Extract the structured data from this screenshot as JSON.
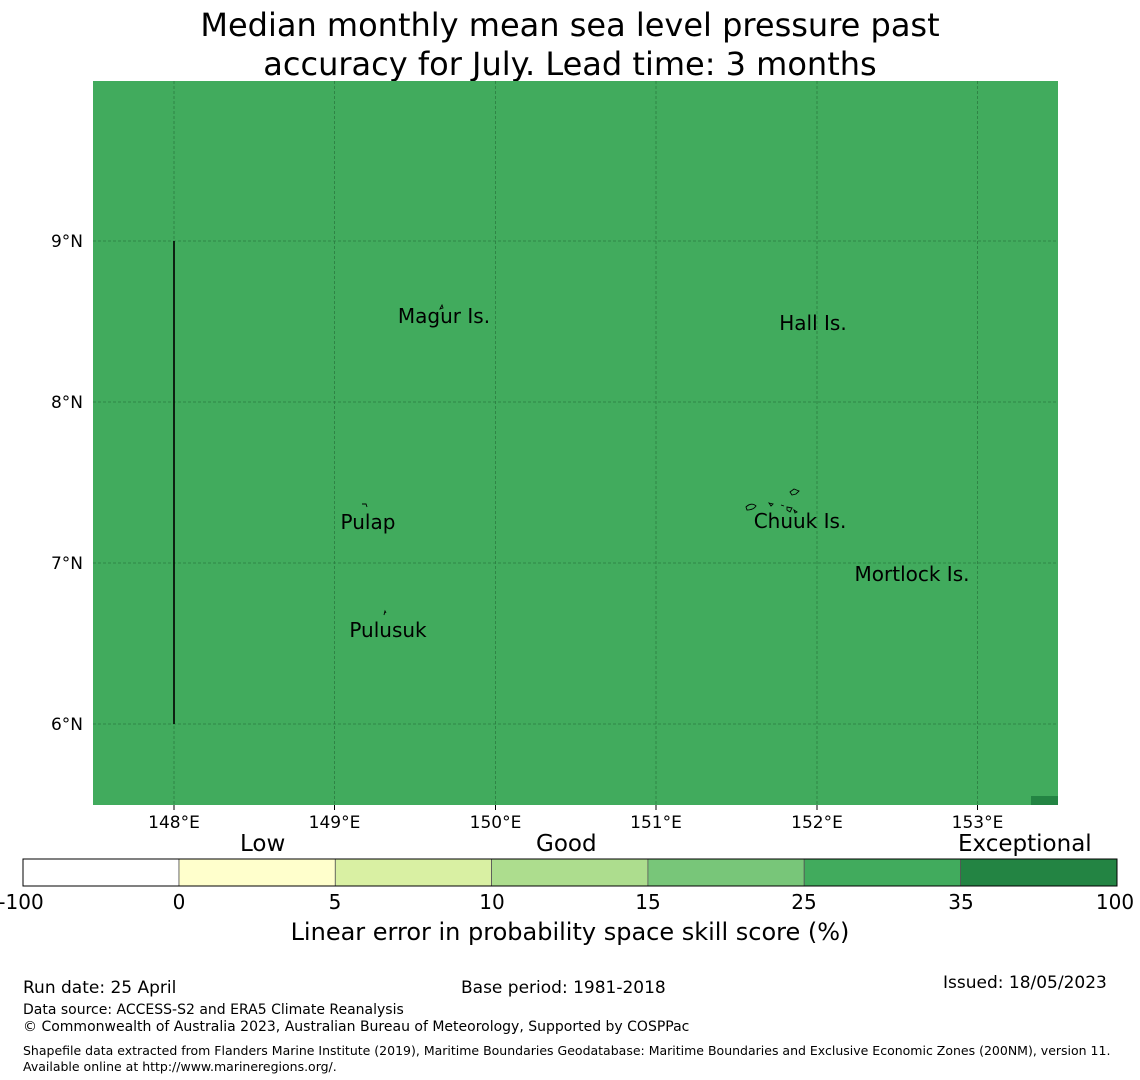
{
  "title": {
    "line1": "Median monthly mean sea level pressure past",
    "line2": "accuracy for July. Lead time: 3 months"
  },
  "map": {
    "lon_range": [
      147.5,
      153.5
    ],
    "lat_range": [
      5.5,
      10.0
    ],
    "lon_ticks": [
      "148°E",
      "149°E",
      "150°E",
      "151°E",
      "152°E",
      "153°E"
    ],
    "lat_ticks": [
      "9°N",
      "8°N",
      "7°N",
      "6°N"
    ],
    "fill_color": "#41ab5d",
    "dark_cell_color": "#238443",
    "boundary_line": {
      "lon": 148.0,
      "lat_from": 6.0,
      "lat_to": 9.0
    },
    "places": [
      {
        "name": "Magur Is.",
        "lon": 149.7,
        "lat": 8.5
      },
      {
        "name": "Hall Is.",
        "lon": 151.98,
        "lat": 8.46
      },
      {
        "name": "Pulap",
        "lon": 149.21,
        "lat": 7.22
      },
      {
        "name": "Chuuk Is.",
        "lon": 151.9,
        "lat": 7.23
      },
      {
        "name": "Mortlock Is.",
        "lon": 152.59,
        "lat": 6.9
      },
      {
        "name": "Pulusuk",
        "lon": 149.33,
        "lat": 6.56
      }
    ]
  },
  "legend": {
    "categories": [
      "Low",
      "Good",
      "Exceptional"
    ],
    "ticks": [
      "-100",
      "0",
      "5",
      "10",
      "15",
      "25",
      "35",
      "100"
    ],
    "colors": [
      "#ffffff",
      "#ffffcc",
      "#d9f0a3",
      "#addd8e",
      "#78c679",
      "#41ab5d",
      "#238443"
    ],
    "label": "Linear error in probability space skill score (%)"
  },
  "footer": {
    "run_date": "Run date: 25 April",
    "base_period": "Base period: 1981-2018",
    "issued": "Issued: 18/05/2023",
    "data_source": "Data source: ACCESS-S2 and ERA5 Climate Reanalysis",
    "copyright": "© Commonwealth of Australia 2023, Australian Bureau of Meteorology, Supported by COSPPac",
    "shapefile": "Shapefile data extracted from Flanders Marine Institute (2019), Maritime Boundaries Geodatabase: Maritime Boundaries and Exclusive Economic Zones (200NM), version 11. Available online at http://www.marineregions.org/."
  }
}
